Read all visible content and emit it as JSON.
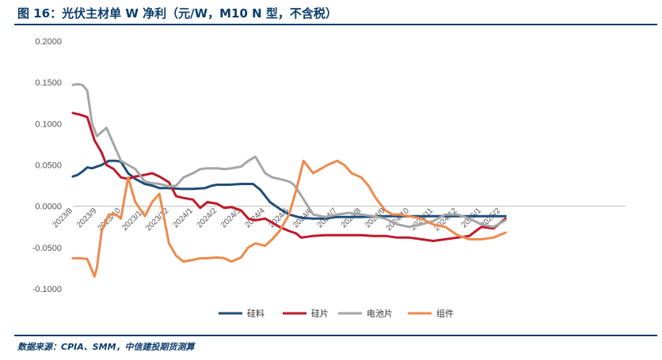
{
  "title": "图 16：光伏主材单 W 净利（元/W，M10 N 型，不含税）",
  "source": "数据来源：CPIA、SMM，中信建投期货测算",
  "chart_data": {
    "type": "line",
    "title": "图 16：光伏主材单 W 净利（元/W，M10 N 型，不含税）",
    "xlabel": "",
    "ylabel": "",
    "ylim": [
      -0.1,
      0.2
    ],
    "yticks": [
      "0.2000",
      "0.1500",
      "0.1000",
      "0.0500",
      "0.0000",
      "-0.0500",
      "-0.1000"
    ],
    "ytick_values": [
      0.2,
      0.15,
      0.1,
      0.05,
      0.0,
      -0.05,
      -0.1
    ],
    "xlim": [
      0,
      23
    ],
    "x_tick_labels": [
      "2023/8",
      "2023/9",
      "2023/10",
      "2023/11",
      "2023/12",
      "2024/1",
      "2024/2",
      "2024/3",
      "2024/4",
      "2024/5",
      "2024/6",
      "2024/7",
      "2024/8",
      "2024/9",
      "2024/10",
      "2024/11",
      "2024/12",
      "2025/1",
      "2025/2"
    ],
    "x_tick_positions": [
      0,
      1,
      2,
      3,
      4,
      5,
      6,
      7,
      8,
      9,
      10,
      11,
      12,
      13,
      14,
      15,
      16,
      17,
      17.8
    ],
    "grid": false,
    "legend_position": "bottom",
    "series": [
      {
        "name": "硅料",
        "color": "#1f4e79",
        "x": [
          0,
          0.2,
          0.4,
          0.6,
          0.8,
          1.0,
          1.2,
          1.5,
          1.8,
          2.0,
          2.3,
          2.6,
          3.0,
          3.3,
          3.6,
          4.0,
          4.5,
          5.0,
          5.5,
          5.8,
          6.0,
          6.5,
          7.0,
          7.5,
          7.8,
          8.2,
          8.6,
          9.0,
          9.5,
          10.0,
          10.5,
          11.0,
          12.0,
          13.0,
          14.0,
          15.0,
          16.0,
          17.0,
          18.0
        ],
        "y": [
          0.036,
          0.038,
          0.042,
          0.047,
          0.046,
          0.048,
          0.05,
          0.055,
          0.055,
          0.054,
          0.04,
          0.033,
          0.027,
          0.025,
          0.022,
          0.022,
          0.021,
          0.021,
          0.022,
          0.025,
          0.026,
          0.026,
          0.027,
          0.027,
          0.02,
          0.005,
          -0.003,
          -0.01,
          -0.014,
          -0.015,
          -0.015,
          -0.013,
          -0.013,
          -0.012,
          -0.012,
          -0.012,
          -0.012,
          -0.012,
          -0.012
        ]
      },
      {
        "name": "硅片",
        "color": "#c0192b",
        "x": [
          0,
          0.3,
          0.6,
          0.9,
          1.2,
          1.4,
          1.7,
          2.0,
          2.3,
          2.6,
          3.0,
          3.3,
          3.6,
          4.0,
          4.3,
          4.6,
          5.0,
          5.3,
          5.6,
          6.0,
          6.3,
          6.6,
          7.0,
          7.3,
          7.6,
          8.0,
          8.3,
          8.6,
          9.0,
          9.3,
          9.5,
          10.0,
          10.5,
          11.0,
          11.5,
          12.0,
          12.5,
          13.0,
          13.5,
          14.0,
          14.5,
          15.0,
          15.5,
          16.0,
          16.5,
          17.0,
          17.5,
          18.0
        ],
        "y": [
          0.113,
          0.111,
          0.108,
          0.08,
          0.065,
          0.05,
          0.045,
          0.035,
          0.033,
          0.036,
          0.038,
          0.04,
          0.036,
          0.029,
          0.012,
          0.01,
          0.008,
          -0.002,
          0.005,
          0.003,
          -0.002,
          -0.001,
          -0.005,
          -0.015,
          -0.017,
          -0.015,
          -0.02,
          -0.025,
          -0.03,
          -0.033,
          -0.038,
          -0.036,
          -0.035,
          -0.035,
          -0.035,
          -0.035,
          -0.036,
          -0.036,
          -0.038,
          -0.038,
          -0.04,
          -0.042,
          -0.04,
          -0.038,
          -0.036,
          -0.025,
          -0.027,
          -0.015
        ]
      },
      {
        "name": "电池片",
        "color": "#a6a6a6",
        "x": [
          0,
          0.2,
          0.4,
          0.6,
          0.8,
          1.0,
          1.2,
          1.4,
          1.7,
          2.0,
          2.3,
          2.6,
          3.0,
          3.3,
          3.6,
          4.0,
          4.3,
          4.6,
          5.0,
          5.3,
          5.6,
          6.0,
          6.3,
          6.6,
          7.0,
          7.3,
          7.6,
          8.0,
          8.3,
          8.6,
          9.0,
          9.2,
          9.5,
          10.0,
          10.5,
          11.0,
          11.5,
          12.0,
          12.5,
          13.0,
          13.5,
          14.0,
          14.5,
          15.0,
          15.5,
          16.0,
          16.5,
          17.0,
          17.5,
          18.0
        ],
        "y": [
          0.147,
          0.148,
          0.147,
          0.14,
          0.1,
          0.085,
          0.09,
          0.095,
          0.075,
          0.055,
          0.05,
          0.045,
          0.03,
          0.028,
          0.027,
          0.024,
          0.025,
          0.035,
          0.04,
          0.045,
          0.046,
          0.046,
          0.045,
          0.046,
          0.048,
          0.055,
          0.06,
          0.04,
          0.035,
          0.033,
          0.03,
          0.026,
          0.013,
          -0.01,
          -0.013,
          -0.01,
          -0.008,
          -0.01,
          -0.012,
          -0.015,
          -0.022,
          -0.025,
          -0.022,
          -0.018,
          -0.01,
          -0.01,
          -0.015,
          -0.022,
          -0.025,
          -0.017
        ]
      },
      {
        "name": "组件",
        "color": "#ed8a4d",
        "x": [
          0,
          0.3,
          0.6,
          0.9,
          1.0,
          1.2,
          1.5,
          1.8,
          2.0,
          2.3,
          2.6,
          3.0,
          3.3,
          3.6,
          4.0,
          4.3,
          4.6,
          5.0,
          5.3,
          5.6,
          6.0,
          6.3,
          6.6,
          7.0,
          7.3,
          7.6,
          8.0,
          8.3,
          8.6,
          9.0,
          9.3,
          9.6,
          10.0,
          10.3,
          10.6,
          11.0,
          11.3,
          11.6,
          12.0,
          12.3,
          12.6,
          13.0,
          13.3,
          13.6,
          14.0,
          14.5,
          15.0,
          15.5,
          16.0,
          16.5,
          17.0,
          17.5,
          18.0
        ],
        "y": [
          -0.063,
          -0.063,
          -0.064,
          -0.085,
          -0.075,
          -0.03,
          -0.01,
          -0.01,
          -0.015,
          0.035,
          0.005,
          -0.012,
          0.005,
          0.015,
          -0.045,
          -0.06,
          -0.067,
          -0.065,
          -0.063,
          -0.063,
          -0.062,
          -0.063,
          -0.067,
          -0.062,
          -0.05,
          -0.045,
          -0.048,
          -0.04,
          -0.03,
          -0.01,
          0.02,
          0.055,
          0.04,
          0.045,
          0.05,
          0.055,
          0.05,
          0.04,
          0.035,
          0.025,
          0.01,
          -0.005,
          -0.01,
          -0.01,
          -0.012,
          -0.015,
          -0.022,
          -0.025,
          -0.035,
          -0.04,
          -0.04,
          -0.038,
          -0.032
        ]
      }
    ]
  }
}
